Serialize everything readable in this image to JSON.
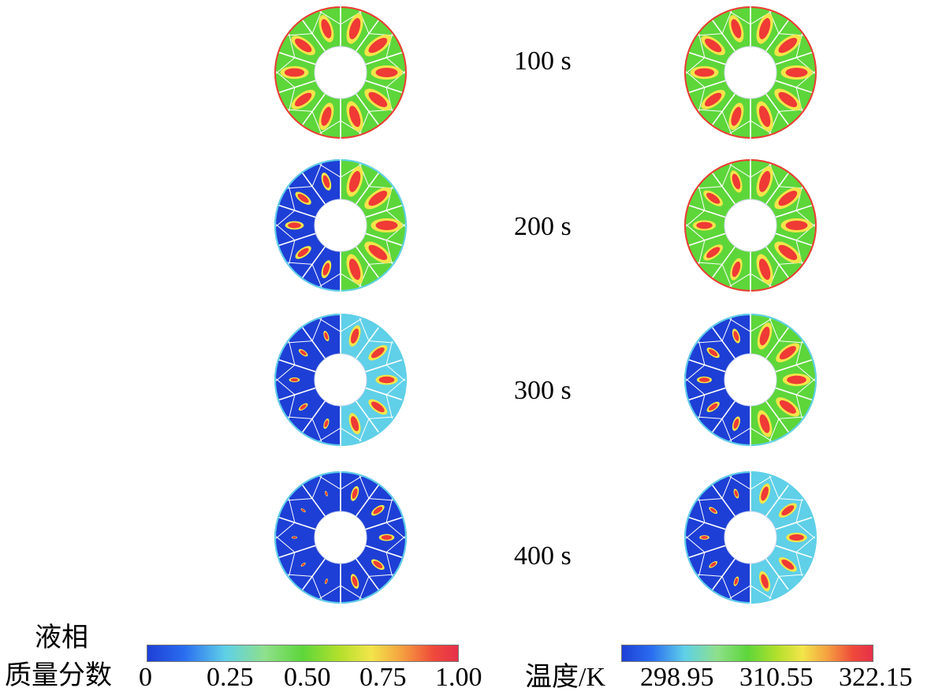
{
  "rows": [
    {
      "time_label": "100 s",
      "stage": 1.0
    },
    {
      "time_label": "200 s",
      "stage": 0.66
    },
    {
      "time_label": "300 s",
      "stage": 0.38
    },
    {
      "time_label": "400 s",
      "stage": 0.2
    }
  ],
  "left_colorbar": {
    "title_line1": "液相",
    "title_line2": "质量分数",
    "ticks": [
      "0",
      "0.25",
      "0.50",
      "0.75",
      "1.00"
    ]
  },
  "right_colorbar": {
    "title": "温度/K",
    "ticks": [
      "298.95",
      "310.55",
      "322.15"
    ]
  },
  "colors": {
    "low": "#1e3fd6",
    "mid_low": "#5fd0e8",
    "mid": "#5dd63a",
    "mid_high": "#f2e54a",
    "high": "#ef3a35"
  }
}
